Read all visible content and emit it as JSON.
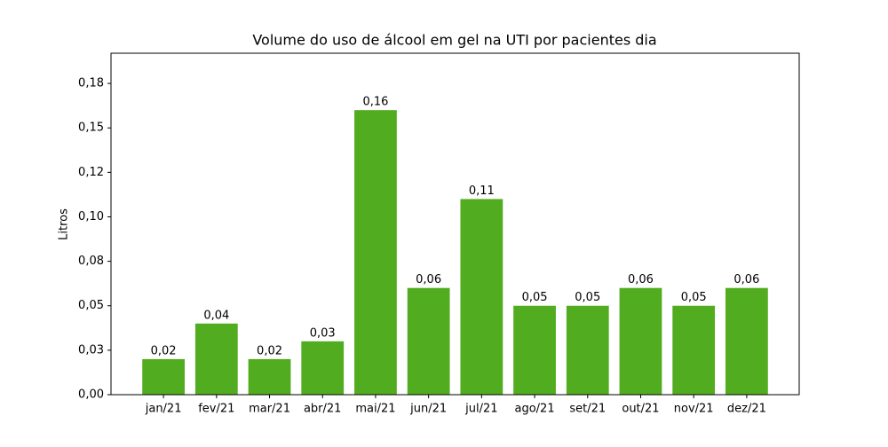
{
  "chart_data": {
    "type": "bar",
    "title": "Volume do uso de álcool em gel na UTI por pacientes dia",
    "ylabel": "Litros",
    "categories": [
      "jan/21",
      "fev/21",
      "mar/21",
      "abr/21",
      "mai/21",
      "jun/21",
      "jul/21",
      "ago/21",
      "set/21",
      "out/21",
      "nov/21",
      "dez/21"
    ],
    "values": [
      0.02,
      0.04,
      0.02,
      0.03,
      0.16,
      0.06,
      0.11,
      0.05,
      0.05,
      0.06,
      0.05,
      0.06
    ],
    "value_labels": [
      "0,02",
      "0,04",
      "0,02",
      "0,03",
      "0,16",
      "0,06",
      "0,11",
      "0,05",
      "0,05",
      "0,06",
      "0,05",
      "0,06"
    ],
    "color": "#52ac1f",
    "ylim": [
      0,
      0.192
    ],
    "yticks": [
      {
        "value": 0,
        "label": "0,00"
      },
      {
        "value": 0.025,
        "label": "0,03"
      },
      {
        "value": 0.05,
        "label": "0,05"
      },
      {
        "value": 0.075,
        "label": "0,08"
      },
      {
        "value": 0.1,
        "label": "0,10"
      },
      {
        "value": 0.125,
        "label": "0,12"
      },
      {
        "value": 0.15,
        "label": "0,15"
      },
      {
        "value": 0.175,
        "label": "0,18"
      }
    ],
    "grid": false
  }
}
